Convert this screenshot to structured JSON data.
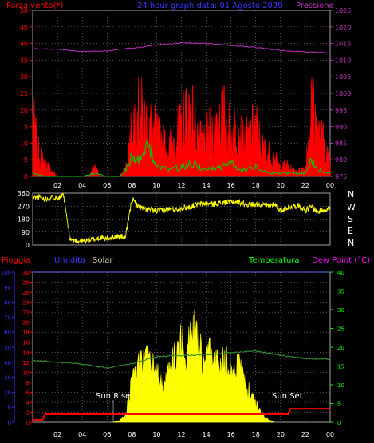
{
  "header": {
    "wind_label": "Forza vento(*)",
    "title": "24 hour graph data: 01 Agosto 2020",
    "pressure_label": "Pressione"
  },
  "compass": [
    "N",
    "W",
    "S",
    "E",
    "N"
  ],
  "lower_header": {
    "rain_label": "Pioggia",
    "humidity_label": "Umidita",
    "solar_label": "Solar",
    "temp_label": "Temperatura",
    "dew_label": "Dew Point (°C)"
  },
  "annotations": {
    "sunrise": "Sun Rise",
    "sunset": "Sun Set"
  },
  "x_ticks": [
    "02",
    "04",
    "06",
    "08",
    "10",
    "12",
    "14",
    "16",
    "18",
    "20",
    "22",
    "00"
  ],
  "colors": {
    "wind": "#ff0000",
    "gust": "#00cc00",
    "pressure": "#c030c0",
    "direction": "#ffff00",
    "rain": "#ff0000",
    "humidity": "#3838ff",
    "solar": "#ffff00",
    "temperature": "#2e8b2e",
    "dew": "#ff00ff",
    "grid": "#a0a0a0"
  },
  "chart_data": [
    {
      "type": "line",
      "title": "24 hour graph data: 01 Agosto 2020",
      "x_range_hours": [
        0,
        24
      ],
      "x_ticks": [
        "02",
        "04",
        "06",
        "08",
        "10",
        "12",
        "14",
        "16",
        "18",
        "20",
        "22",
        "00"
      ],
      "y_left": {
        "label": "Forza vento(*)",
        "range": [
          0,
          50
        ],
        "ticks": [
          0,
          5,
          10,
          15,
          20,
          25,
          30,
          35,
          40,
          45,
          50
        ]
      },
      "y_right": {
        "label": "Pressione",
        "range": [
          975,
          1025
        ],
        "ticks": [
          975,
          980,
          985,
          990,
          995,
          1000,
          1005,
          1010,
          1015,
          1020,
          1025
        ]
      },
      "series": [
        {
          "name": "Pressione",
          "axis": "right",
          "x": [
            0,
            2,
            4,
            6,
            8,
            10,
            12,
            14,
            16,
            18,
            20,
            22,
            23.8
          ],
          "values": [
            1013.4,
            1013.3,
            1012.6,
            1012.8,
            1013.6,
            1014.6,
            1015.2,
            1015.0,
            1014.5,
            1013.8,
            1013.0,
            1012.5,
            1012.2
          ]
        },
        {
          "name": "Forza vento(*)",
          "axis": "left",
          "x": [
            0,
            0.5,
            1,
            1.5,
            2,
            2.5,
            3,
            3.5,
            4,
            4.5,
            5,
            5.5,
            6,
            6.5,
            7,
            7.5,
            8,
            8.5,
            9,
            9.5,
            10,
            10.5,
            11,
            11.5,
            12,
            12.5,
            13,
            13.5,
            14,
            14.5,
            15,
            15.5,
            16,
            16.5,
            17,
            17.5,
            18,
            18.5,
            19,
            19.5,
            20,
            20.5,
            21,
            21.5,
            22,
            22.5,
            23,
            23.5,
            24
          ],
          "values": [
            20,
            8,
            5,
            2,
            0,
            0,
            0,
            0,
            0,
            0,
            3,
            0,
            0,
            0,
            0,
            3,
            18,
            25,
            20,
            18,
            15,
            12,
            10,
            14,
            17,
            25,
            20,
            12,
            14,
            16,
            22,
            20,
            15,
            18,
            12,
            14,
            18,
            10,
            8,
            6,
            3,
            4,
            2,
            2,
            3,
            26,
            15,
            12,
            5
          ]
        },
        {
          "name": "gust",
          "axis": "left",
          "x": [
            0,
            1,
            2,
            3,
            4,
            5,
            6,
            7,
            7.5,
            8,
            8.5,
            9,
            9.5,
            10,
            11,
            12,
            13,
            14,
            15,
            16,
            17,
            18,
            19,
            20,
            21,
            22,
            22.5,
            23,
            24
          ],
          "values": [
            1,
            0,
            0,
            0,
            0,
            1,
            0,
            0,
            2,
            6,
            5,
            8,
            9,
            3,
            2,
            3,
            4,
            2,
            3,
            4,
            2,
            3,
            1,
            1,
            1,
            1,
            6,
            2,
            1
          ]
        }
      ]
    },
    {
      "type": "scatter",
      "title": "",
      "x_range_hours": [
        0,
        24
      ],
      "y_range": [
        0,
        360
      ],
      "y_ticks": [
        0,
        90,
        180,
        270,
        360
      ],
      "series": [
        {
          "name": "direction",
          "x": [
            0,
            0.5,
            1,
            1.5,
            2,
            2.5,
            3,
            3.5,
            4,
            4.5,
            5,
            5.5,
            6,
            6.5,
            7,
            7.5,
            8,
            8.5,
            9,
            9.5,
            10,
            10.5,
            11,
            11.5,
            12,
            12.5,
            13,
            13.5,
            14,
            14.5,
            15,
            15.5,
            16,
            16.5,
            17,
            17.5,
            18,
            18.5,
            19,
            19.5,
            20,
            20.5,
            21,
            21.5,
            22,
            22.5,
            23,
            23.5,
            24
          ],
          "values": [
            330,
            335,
            320,
            330,
            330,
            340,
            40,
            30,
            25,
            35,
            40,
            50,
            45,
            55,
            60,
            55,
            320,
            270,
            250,
            245,
            235,
            240,
            250,
            245,
            260,
            260,
            275,
            285,
            290,
            285,
            290,
            295,
            300,
            300,
            290,
            280,
            285,
            280,
            270,
            285,
            240,
            260,
            270,
            275,
            240,
            265,
            230,
            245,
            260
          ]
        }
      ]
    },
    {
      "type": "area",
      "title": "",
      "x_range_hours": [
        0,
        24
      ],
      "x_ticks": [
        "02",
        "04",
        "06",
        "08",
        "10",
        "12",
        "14",
        "16",
        "18",
        "20",
        "22",
        "00"
      ],
      "y_axes": [
        {
          "label": "Umidita",
          "range": [
            0,
            100
          ],
          "ticks": [
            0,
            10,
            20,
            30,
            40,
            50,
            60,
            70,
            80,
            90,
            100
          ]
        },
        {
          "label": "Pioggia",
          "range": [
            0,
            30
          ],
          "ticks": [
            0,
            2,
            4,
            6,
            8,
            10,
            12,
            14,
            16,
            18,
            20,
            22,
            24,
            26,
            28,
            30
          ]
        },
        {
          "label": "Temperatura",
          "range": [
            0,
            40
          ],
          "ticks": [
            0,
            5,
            10,
            15,
            20,
            25,
            30,
            35,
            40
          ]
        }
      ],
      "series": [
        {
          "name": "Solar",
          "axis": "Pioggia",
          "x": [
            6.5,
            7,
            7.5,
            8,
            8.5,
            9,
            9.5,
            10,
            10.5,
            11,
            11.5,
            12,
            12.5,
            13,
            13.5,
            14,
            14.5,
            15,
            15.5,
            16,
            16.5,
            17,
            17.5,
            18,
            18.5,
            19,
            19.5
          ],
          "values": [
            0,
            0.4,
            1.5,
            8,
            11,
            14,
            12,
            10,
            7,
            10,
            13,
            16,
            14,
            18,
            15,
            12,
            14,
            11,
            13,
            10,
            12,
            9,
            6,
            4,
            1.5,
            0.5,
            0
          ]
        },
        {
          "name": "Temperatura",
          "axis": "Temperatura",
          "x": [
            0,
            2,
            4,
            6,
            7,
            8,
            9,
            10,
            12,
            14,
            16,
            18,
            20,
            22,
            24
          ],
          "values": [
            16.5,
            16,
            15.5,
            14.5,
            15,
            15.6,
            16.5,
            17.5,
            17.8,
            18,
            18.5,
            19,
            17.8,
            17,
            16.8
          ]
        },
        {
          "name": "Pioggia",
          "axis": "Pioggia",
          "x": [
            0,
            0.8,
            1,
            20.6,
            20.8,
            24
          ],
          "values": [
            0.5,
            0.5,
            1.6,
            1.6,
            2.7,
            2.7
          ]
        }
      ]
    }
  ]
}
